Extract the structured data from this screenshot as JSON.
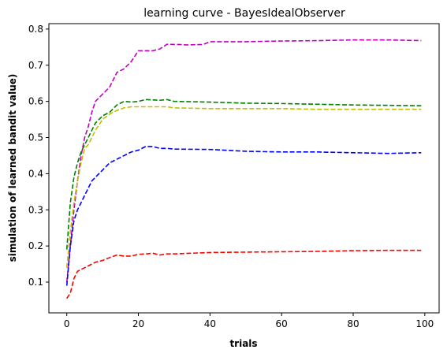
{
  "chart_data": {
    "type": "line",
    "title": "learning curve - BayesIdealObserver",
    "xlabel": "trials",
    "ylabel": "simulation of learned bandit value)",
    "xlim": [
      -5,
      104
    ],
    "ylim": [
      0.015,
      0.815
    ],
    "xticks": [
      0,
      20,
      40,
      60,
      80,
      100
    ],
    "yticks": [
      0.1,
      0.2,
      0.3,
      0.4,
      0.5,
      0.6,
      0.7,
      0.8
    ],
    "grid": false,
    "line_style": "dashed",
    "series": [
      {
        "color": "#bf00bf",
        "x": [
          0,
          1,
          2,
          3,
          4,
          5,
          6,
          7,
          8,
          10,
          12,
          14,
          16,
          18,
          20,
          22,
          24,
          26,
          28,
          32,
          34,
          36,
          38,
          40,
          44,
          50,
          60,
          70,
          80,
          90,
          99
        ],
        "y": [
          0.1,
          0.2,
          0.3,
          0.38,
          0.45,
          0.5,
          0.53,
          0.57,
          0.6,
          0.62,
          0.64,
          0.68,
          0.69,
          0.71,
          0.74,
          0.74,
          0.74,
          0.745,
          0.758,
          0.757,
          0.756,
          0.757,
          0.757,
          0.765,
          0.765,
          0.765,
          0.767,
          0.768,
          0.77,
          0.77,
          0.768
        ]
      },
      {
        "color": "#008000",
        "x": [
          0,
          1,
          2,
          3,
          4,
          5,
          6,
          7,
          8,
          10,
          12,
          14,
          16,
          18,
          20,
          22,
          24,
          26,
          28,
          30,
          40,
          50,
          60,
          70,
          80,
          90,
          99
        ],
        "y": [
          0.19,
          0.32,
          0.39,
          0.43,
          0.46,
          0.48,
          0.5,
          0.52,
          0.54,
          0.56,
          0.57,
          0.59,
          0.6,
          0.598,
          0.6,
          0.605,
          0.604,
          0.603,
          0.605,
          0.6,
          0.598,
          0.595,
          0.594,
          0.592,
          0.59,
          0.589,
          0.588
        ]
      },
      {
        "color": "#bfbf00",
        "x": [
          0,
          1,
          2,
          3,
          4,
          5,
          6,
          7,
          8,
          10,
          12,
          14,
          16,
          18,
          20,
          22,
          24,
          26,
          28,
          30,
          40,
          50,
          60,
          70,
          80,
          90,
          99
        ],
        "y": [
          0.14,
          0.24,
          0.32,
          0.38,
          0.43,
          0.47,
          0.48,
          0.5,
          0.52,
          0.55,
          0.565,
          0.575,
          0.582,
          0.585,
          0.585,
          0.585,
          0.585,
          0.585,
          0.585,
          0.582,
          0.58,
          0.58,
          0.58,
          0.578,
          0.578,
          0.578,
          0.578
        ]
      },
      {
        "color": "#0000ff",
        "x": [
          0,
          1,
          2,
          3,
          4,
          5,
          6,
          7,
          8,
          10,
          12,
          14,
          16,
          18,
          20,
          22,
          24,
          26,
          28,
          30,
          40,
          50,
          60,
          70,
          80,
          90,
          99
        ],
        "y": [
          0.09,
          0.2,
          0.27,
          0.3,
          0.32,
          0.34,
          0.36,
          0.38,
          0.39,
          0.41,
          0.43,
          0.44,
          0.45,
          0.46,
          0.465,
          0.475,
          0.475,
          0.47,
          0.47,
          0.468,
          0.467,
          0.462,
          0.46,
          0.46,
          0.458,
          0.456,
          0.458
        ]
      },
      {
        "color": "#ff0000",
        "x": [
          0,
          1,
          2,
          3,
          4,
          5,
          6,
          7,
          8,
          10,
          12,
          14,
          16,
          18,
          20,
          22,
          24,
          26,
          28,
          30,
          40,
          50,
          60,
          70,
          80,
          90,
          99
        ],
        "y": [
          0.055,
          0.07,
          0.11,
          0.13,
          0.135,
          0.14,
          0.145,
          0.15,
          0.155,
          0.16,
          0.168,
          0.175,
          0.172,
          0.172,
          0.177,
          0.178,
          0.18,
          0.175,
          0.178,
          0.178,
          0.182,
          0.183,
          0.184,
          0.185,
          0.187,
          0.188,
          0.188
        ]
      }
    ]
  }
}
